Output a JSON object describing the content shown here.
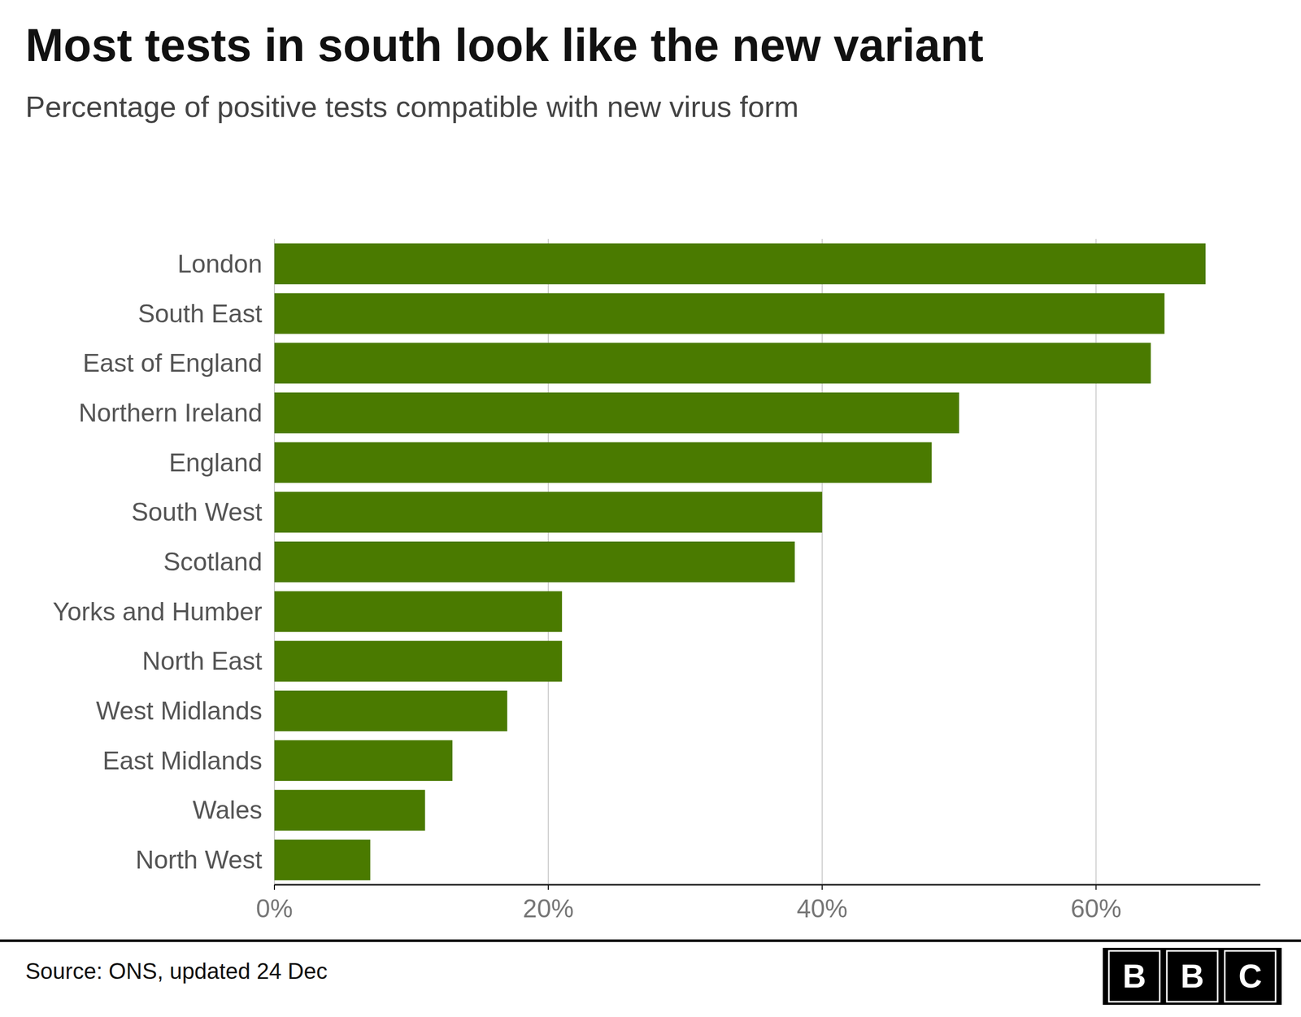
{
  "chart_data": {
    "type": "bar",
    "orientation": "horizontal",
    "title": "Most tests in south look like the new variant",
    "subtitle": "Percentage of positive tests compatible with new virus form",
    "source": "Source: ONS, updated 24 Dec",
    "annotations": [
      "B",
      "B",
      "C"
    ],
    "categories": [
      "London",
      "South East",
      "East of England",
      "Northern Ireland",
      "England",
      "South West",
      "Scotland",
      "Yorks and Humber",
      "North East",
      "West Midlands",
      "East Midlands",
      "Wales",
      "North West"
    ],
    "values": [
      68,
      65,
      64,
      50,
      48,
      40,
      38,
      21,
      21,
      17,
      13,
      11,
      7
    ],
    "color": "#4a7a00",
    "xlim": [
      0,
      72
    ],
    "xticks": [
      {
        "value": 0,
        "label": "0%"
      },
      {
        "value": 20,
        "label": "20%"
      },
      {
        "value": 40,
        "label": "40%"
      },
      {
        "value": 60,
        "label": "60%"
      }
    ],
    "grid": true
  }
}
